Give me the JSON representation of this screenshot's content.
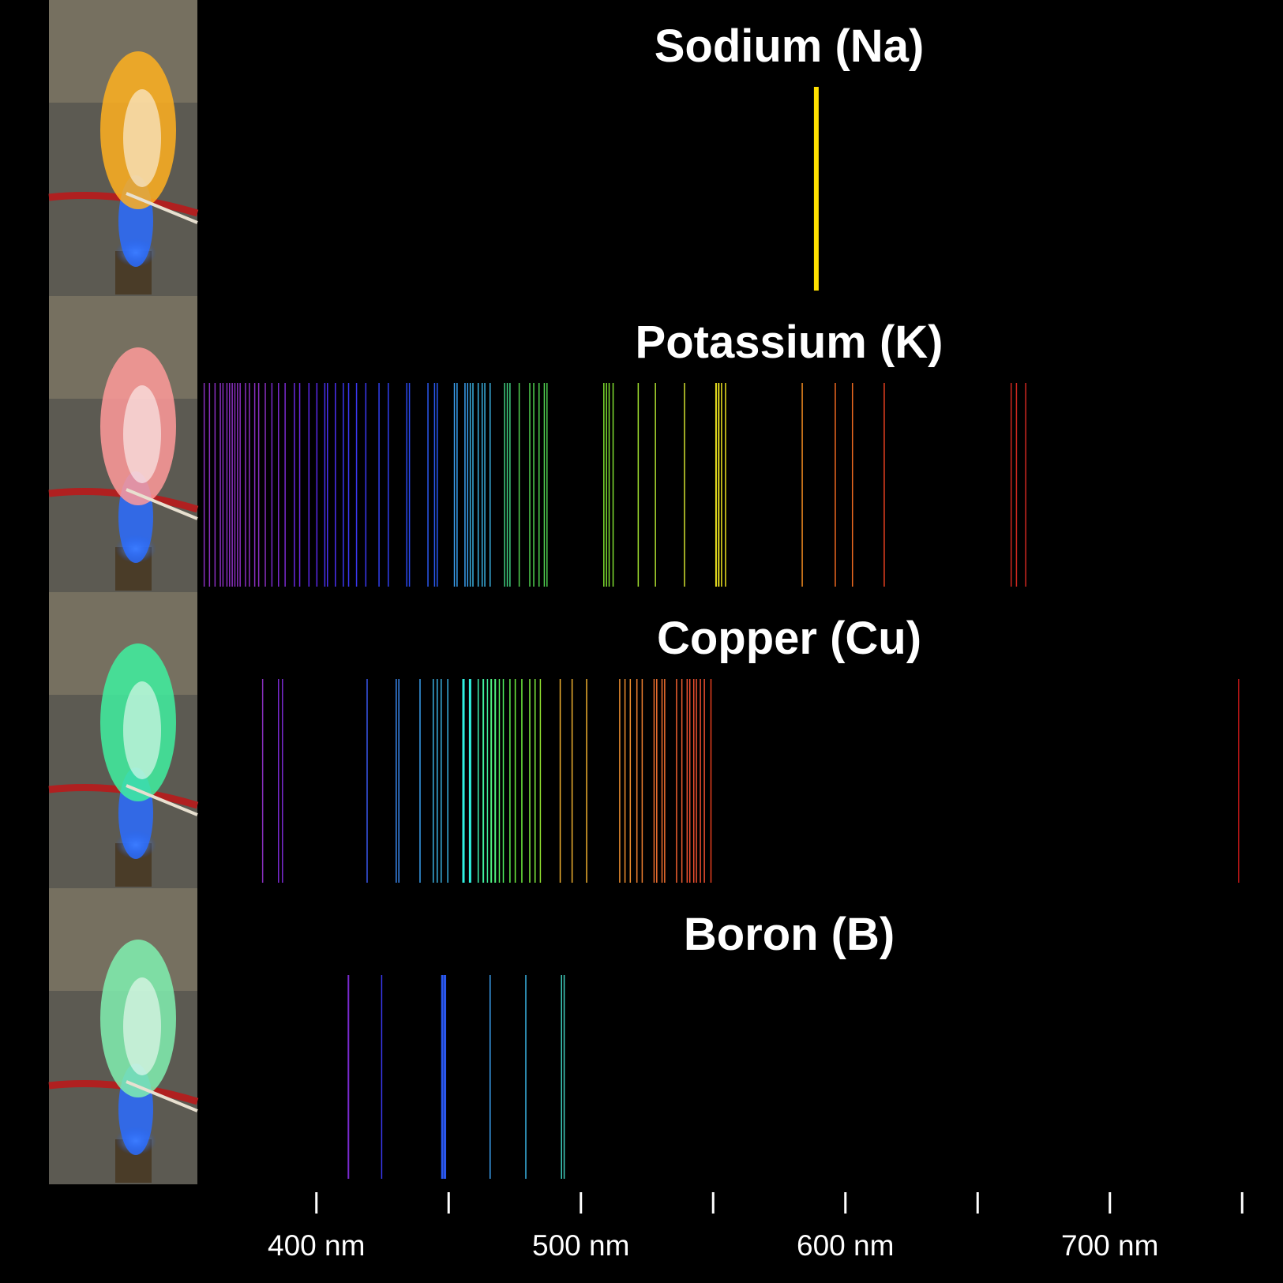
{
  "chart_data": {
    "type": "emission-line-spectra",
    "xlim": [
      355,
      755
    ],
    "xticks": [
      400,
      450,
      500,
      550,
      600,
      650,
      700,
      750
    ],
    "xtick_labels": [
      {
        "value": 400,
        "label": "400 nm"
      },
      {
        "value": 500,
        "label": "500 nm"
      },
      {
        "value": 600,
        "label": "600 nm"
      },
      {
        "value": 700,
        "label": "700 nm"
      }
    ],
    "panels": [
      {
        "title": "Sodium (Na)",
        "flame_color": "#ffb020",
        "lines": [
          {
            "wl": 589.0,
            "color": "#ffe000",
            "width": 6
          }
        ]
      },
      {
        "title": "Potassium (K)",
        "flame_color": "#ff9a9a",
        "lines": [
          {
            "wl": 357.5,
            "color": "#8a2fc0",
            "width": 1
          },
          {
            "wl": 359.5,
            "color": "#8a2fc0",
            "width": 1
          },
          {
            "wl": 361.6,
            "color": "#8a2fc0",
            "width": 1
          },
          {
            "wl": 363.6,
            "color": "#8a2fc0",
            "width": 1
          },
          {
            "wl": 364.6,
            "color": "#8a2fc0",
            "width": 1
          },
          {
            "wl": 366.1,
            "color": "#8a2fc0",
            "width": 1
          },
          {
            "wl": 367.1,
            "color": "#8a2fc0",
            "width": 1
          },
          {
            "wl": 368.1,
            "color": "#8a2fc0",
            "width": 1
          },
          {
            "wl": 369.1,
            "color": "#8a2fc0",
            "width": 1
          },
          {
            "wl": 370.1,
            "color": "#8a2fc0",
            "width": 1
          },
          {
            "wl": 371.1,
            "color": "#8a2fc0",
            "width": 1
          },
          {
            "wl": 373.1,
            "color": "#8a2fc0",
            "width": 1
          },
          {
            "wl": 374.6,
            "color": "#8a2fc0",
            "width": 1
          },
          {
            "wl": 376.6,
            "color": "#8a2fc0",
            "width": 1
          },
          {
            "wl": 378.1,
            "color": "#8a2fc0",
            "width": 1
          },
          {
            "wl": 380.6,
            "color": "#8a2fc0",
            "width": 1
          },
          {
            "wl": 383.1,
            "color": "#7a2ad0",
            "width": 1
          },
          {
            "wl": 385.6,
            "color": "#7a2ad0",
            "width": 1
          },
          {
            "wl": 388.1,
            "color": "#7a2ad0",
            "width": 1
          },
          {
            "wl": 391.6,
            "color": "#6a28e0",
            "width": 1
          },
          {
            "wl": 393.6,
            "color": "#6a28e0",
            "width": 1
          },
          {
            "wl": 397.1,
            "color": "#5a28e8",
            "width": 1
          },
          {
            "wl": 400.1,
            "color": "#5a28e8",
            "width": 1
          },
          {
            "wl": 403.1,
            "color": "#4a30f0",
            "width": 1
          },
          {
            "wl": 404.1,
            "color": "#4a30f0",
            "width": 1
          },
          {
            "wl": 407.1,
            "color": "#4a30f0",
            "width": 1
          },
          {
            "wl": 410.1,
            "color": "#3a38f0",
            "width": 1
          },
          {
            "wl": 412.1,
            "color": "#3a38f0",
            "width": 1
          },
          {
            "wl": 415.1,
            "color": "#3a38f0",
            "width": 1
          },
          {
            "wl": 418.6,
            "color": "#3a38f0",
            "width": 1
          },
          {
            "wl": 423.6,
            "color": "#3040f0",
            "width": 1
          },
          {
            "wl": 427.1,
            "color": "#3040f0",
            "width": 1
          },
          {
            "wl": 434.1,
            "color": "#2a48f0",
            "width": 1
          },
          {
            "wl": 435.1,
            "color": "#2a48f0",
            "width": 1
          },
          {
            "wl": 442.1,
            "color": "#2a58f0",
            "width": 1
          },
          {
            "wl": 444.6,
            "color": "#2a58f0",
            "width": 1
          },
          {
            "wl": 445.6,
            "color": "#2a58f0",
            "width": 1
          },
          {
            "wl": 452.1,
            "color": "#3aa0f0",
            "width": 1
          },
          {
            "wl": 453.1,
            "color": "#3aa0f0",
            "width": 1
          },
          {
            "wl": 456.1,
            "color": "#3aa0f0",
            "width": 1
          },
          {
            "wl": 457.1,
            "color": "#3aa0f0",
            "width": 1
          },
          {
            "wl": 458.1,
            "color": "#3ab0e0",
            "width": 1
          },
          {
            "wl": 459.1,
            "color": "#3ab0e0",
            "width": 1
          },
          {
            "wl": 461.1,
            "color": "#3ab0e0",
            "width": 1
          },
          {
            "wl": 462.6,
            "color": "#3ab0e0",
            "width": 1
          },
          {
            "wl": 463.6,
            "color": "#3ab0e0",
            "width": 1
          },
          {
            "wl": 465.6,
            "color": "#3ab0e0",
            "width": 1
          },
          {
            "wl": 471.1,
            "color": "#40d080",
            "width": 1
          },
          {
            "wl": 472.1,
            "color": "#40d080",
            "width": 1
          },
          {
            "wl": 473.1,
            "color": "#40d080",
            "width": 1
          },
          {
            "wl": 476.6,
            "color": "#50d050",
            "width": 1
          },
          {
            "wl": 480.6,
            "color": "#50d050",
            "width": 1
          },
          {
            "wl": 482.1,
            "color": "#50d050",
            "width": 1
          },
          {
            "wl": 484.1,
            "color": "#50d050",
            "width": 1
          },
          {
            "wl": 486.1,
            "color": "#50d050",
            "width": 1
          },
          {
            "wl": 487.1,
            "color": "#50d050",
            "width": 1
          },
          {
            "wl": 508.6,
            "color": "#80e030",
            "width": 1
          },
          {
            "wl": 509.6,
            "color": "#80e030",
            "width": 1
          },
          {
            "wl": 510.6,
            "color": "#80e030",
            "width": 1
          },
          {
            "wl": 512.1,
            "color": "#80e030",
            "width": 1
          },
          {
            "wl": 521.6,
            "color": "#a0e030",
            "width": 1
          },
          {
            "wl": 528.1,
            "color": "#b0e030",
            "width": 1
          },
          {
            "wl": 539.1,
            "color": "#d0e030",
            "width": 1
          },
          {
            "wl": 551.1,
            "color": "#e8e020",
            "width": 2
          },
          {
            "wl": 552.1,
            "color": "#e8e020",
            "width": 2
          },
          {
            "wl": 553.1,
            "color": "#e8e020",
            "width": 1
          },
          {
            "wl": 554.6,
            "color": "#e8e020",
            "width": 1
          },
          {
            "wl": 583.6,
            "color": "#f08a20",
            "width": 1
          },
          {
            "wl": 596.1,
            "color": "#f06a20",
            "width": 1
          },
          {
            "wl": 602.6,
            "color": "#f06a20",
            "width": 1
          },
          {
            "wl": 614.6,
            "color": "#e84020",
            "width": 1
          },
          {
            "wl": 662.6,
            "color": "#d02820",
            "width": 1
          },
          {
            "wl": 664.6,
            "color": "#d02820",
            "width": 1
          },
          {
            "wl": 668.1,
            "color": "#d02820",
            "width": 1
          }
        ]
      },
      {
        "title": "Copper (Cu)",
        "flame_color": "#40f0a0",
        "lines": [
          {
            "wl": 379.6,
            "color": "#8a2fc0",
            "width": 1
          },
          {
            "wl": 385.6,
            "color": "#7a2ad0",
            "width": 1
          },
          {
            "wl": 387.1,
            "color": "#7a2ad0",
            "width": 1
          },
          {
            "wl": 419.1,
            "color": "#3a58f0",
            "width": 1
          },
          {
            "wl": 430.1,
            "color": "#3a88f0",
            "width": 1
          },
          {
            "wl": 431.1,
            "color": "#3a88f0",
            "width": 1
          },
          {
            "wl": 439.1,
            "color": "#3aa0f0",
            "width": 1
          },
          {
            "wl": 444.1,
            "color": "#3ab0e0",
            "width": 1
          },
          {
            "wl": 445.6,
            "color": "#3ab0e0",
            "width": 1
          },
          {
            "wl": 447.1,
            "color": "#3ab0e0",
            "width": 1
          },
          {
            "wl": 449.6,
            "color": "#3ab0e0",
            "width": 1
          },
          {
            "wl": 455.6,
            "color": "#30f0e0",
            "width": 3
          },
          {
            "wl": 458.1,
            "color": "#30f0e0",
            "width": 3
          },
          {
            "wl": 461.1,
            "color": "#40f0b0",
            "width": 1
          },
          {
            "wl": 463.1,
            "color": "#40f0a0",
            "width": 2
          },
          {
            "wl": 464.6,
            "color": "#40f0a0",
            "width": 1
          },
          {
            "wl": 466.1,
            "color": "#50f080",
            "width": 2
          },
          {
            "wl": 467.6,
            "color": "#50f080",
            "width": 2
          },
          {
            "wl": 469.1,
            "color": "#50f060",
            "width": 1
          },
          {
            "wl": 470.6,
            "color": "#50f060",
            "width": 1
          },
          {
            "wl": 473.1,
            "color": "#60f050",
            "width": 1
          },
          {
            "wl": 475.1,
            "color": "#70f040",
            "width": 1
          },
          {
            "wl": 477.6,
            "color": "#70f040",
            "width": 1
          },
          {
            "wl": 480.6,
            "color": "#80f040",
            "width": 1
          },
          {
            "wl": 482.6,
            "color": "#80f040",
            "width": 1
          },
          {
            "wl": 484.6,
            "color": "#90e030",
            "width": 1
          },
          {
            "wl": 492.1,
            "color": "#f0b030",
            "width": 1
          },
          {
            "wl": 496.6,
            "color": "#f0b030",
            "width": 1
          },
          {
            "wl": 502.1,
            "color": "#f0b030",
            "width": 1
          },
          {
            "wl": 514.6,
            "color": "#f09030",
            "width": 1
          },
          {
            "wl": 516.6,
            "color": "#f09030",
            "width": 1
          },
          {
            "wl": 518.6,
            "color": "#f09030",
            "width": 1
          },
          {
            "wl": 521.1,
            "color": "#f08030",
            "width": 1
          },
          {
            "wl": 523.1,
            "color": "#f08030",
            "width": 1
          },
          {
            "wl": 527.6,
            "color": "#f07030",
            "width": 1
          },
          {
            "wl": 528.6,
            "color": "#f07030",
            "width": 1
          },
          {
            "wl": 530.6,
            "color": "#f07030",
            "width": 1
          },
          {
            "wl": 531.6,
            "color": "#f07030",
            "width": 1
          },
          {
            "wl": 536.1,
            "color": "#f06030",
            "width": 1
          },
          {
            "wl": 538.1,
            "color": "#f06030",
            "width": 1
          },
          {
            "wl": 540.1,
            "color": "#f05030",
            "width": 1
          },
          {
            "wl": 541.1,
            "color": "#f05030",
            "width": 1
          },
          {
            "wl": 542.6,
            "color": "#f05030",
            "width": 1
          },
          {
            "wl": 543.6,
            "color": "#f05030",
            "width": 1
          },
          {
            "wl": 545.1,
            "color": "#f05030",
            "width": 1
          },
          {
            "wl": 546.6,
            "color": "#f05030",
            "width": 1
          },
          {
            "wl": 549.1,
            "color": "#e84020",
            "width": 1
          },
          {
            "wl": 748.6,
            "color": "#c01818",
            "width": 1
          }
        ]
      },
      {
        "title": "Boron (B)",
        "flame_color": "#80f0b0",
        "lines": [
          {
            "wl": 412.1,
            "color": "#7a2ad0",
            "width": 2
          },
          {
            "wl": 424.6,
            "color": "#3a38f0",
            "width": 1
          },
          {
            "wl": 447.6,
            "color": "#2a58f0",
            "width": 3
          },
          {
            "wl": 448.6,
            "color": "#2a58f0",
            "width": 3
          },
          {
            "wl": 465.6,
            "color": "#3aa0f0",
            "width": 1
          },
          {
            "wl": 479.1,
            "color": "#3ab0e0",
            "width": 1
          },
          {
            "wl": 492.6,
            "color": "#40d0c0",
            "width": 1
          },
          {
            "wl": 493.6,
            "color": "#40d0c0",
            "width": 1
          }
        ]
      }
    ]
  }
}
